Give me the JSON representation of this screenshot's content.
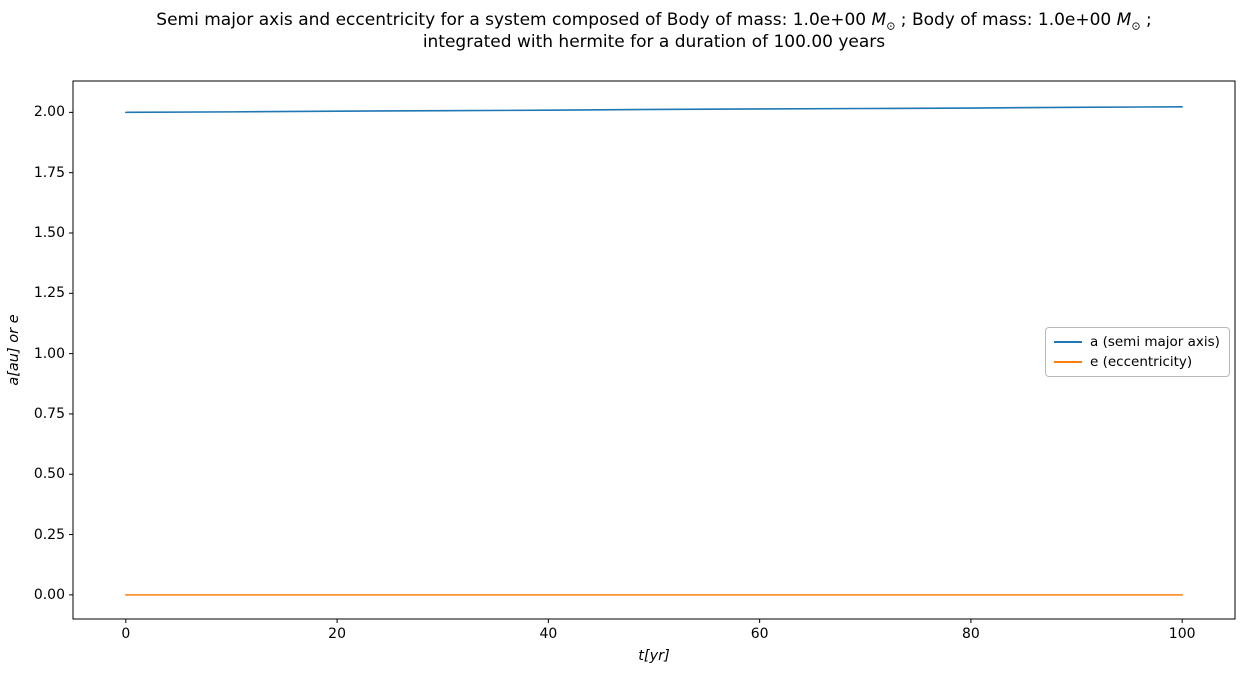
{
  "figure": {
    "title": {
      "line1_part1": "Semi major axis and eccentricity for a system composed of Body of mass: 1.0e+00 ",
      "msun_letter": "M",
      "msun_subscript": "⊙",
      "line1_part2": " ; Body of mass: 1.0e+00 ",
      "msun_letter_2": "M",
      "msun_subscript_2": "⊙",
      "line1_part3": " ;",
      "line2": "integrated with hermite for a duration of 100.00 years"
    },
    "colors": {
      "frame": "#000000",
      "text": "#000000",
      "legend_border": "#b9b9b9",
      "background": "#ffffff"
    }
  },
  "chart_data": {
    "type": "line",
    "title": "Semi major axis and eccentricity for a system composed of Body of mass: 1.0e+00 M⊙ ; Body of mass: 1.0e+00 M⊙ ; integrated with hermite for a duration of 100.00 years",
    "xlabel": "t[yr]",
    "ylabel": "a[au] or e",
    "xlim": [
      -5,
      105
    ],
    "ylim": [
      -0.1,
      2.13
    ],
    "grid": false,
    "legend_position": "center right",
    "xticks": {
      "values": [
        0,
        20,
        40,
        60,
        80,
        100
      ],
      "labels": [
        "0",
        "20",
        "40",
        "60",
        "80",
        "100"
      ]
    },
    "yticks": {
      "values": [
        0.0,
        0.25,
        0.5,
        0.75,
        1.0,
        1.25,
        1.5,
        1.75,
        2.0
      ],
      "labels": [
        "0.00",
        "0.25",
        "0.50",
        "0.75",
        "1.00",
        "1.25",
        "1.50",
        "1.75",
        "2.00"
      ]
    },
    "series": [
      {
        "name": "a (semi major axis)",
        "color": "#1f77b4",
        "x": [
          0,
          10,
          20,
          30,
          40,
          50,
          60,
          70,
          80,
          90,
          100
        ],
        "y": [
          2.0,
          2.002,
          2.005,
          2.007,
          2.009,
          2.012,
          2.014,
          2.016,
          2.018,
          2.021,
          2.023
        ]
      },
      {
        "name": "e (eccentricity)",
        "color": "#ff7f0e",
        "x": [
          0,
          10,
          20,
          30,
          40,
          50,
          60,
          70,
          80,
          90,
          100
        ],
        "y": [
          0.0,
          0.0,
          0.0,
          0.0,
          0.0,
          0.0,
          0.0,
          0.0,
          0.0,
          0.0,
          0.0
        ]
      }
    ]
  }
}
